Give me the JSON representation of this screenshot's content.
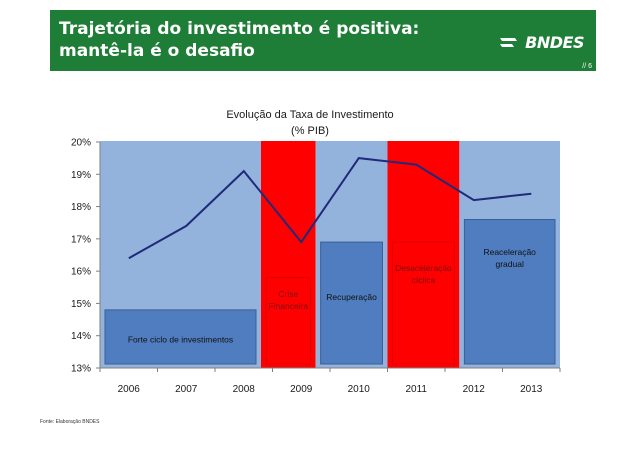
{
  "header": {
    "title": "Trajetória do investimento é positiva: mantê-la é o desafio",
    "logo_text": "BNDES",
    "page_number": "// 6"
  },
  "source_note": "Fonte: Elaboração BNDES",
  "colors": {
    "header_green": "#1e7d36",
    "panel_light_blue": "#93b3dd",
    "box_blue": "#4f7dbf",
    "crisis_red": "#ff0000",
    "line_navy": "#1f2a7a"
  },
  "chart_data": {
    "type": "line",
    "title": "Evolução da Taxa de Investimento",
    "subtitle": "(% PIB)",
    "x": [
      "2006",
      "2007",
      "2008",
      "2009",
      "2010",
      "2011",
      "2012",
      "2013"
    ],
    "y_ticks": [
      "13%",
      "14%",
      "15%",
      "16%",
      "17%",
      "18%",
      "19%",
      "20%"
    ],
    "ylim": [
      13,
      20
    ],
    "grid": false,
    "series": [
      {
        "values": [
          16.4,
          17.4,
          19.1,
          16.9,
          19.5,
          19.3,
          18.2,
          18.4
        ]
      }
    ],
    "annotations": [
      {
        "label": "Forte ciclo de investimentos",
        "panel_x": [
          2005.5,
          2008.3
        ],
        "box_top": 14.8,
        "color": "blue"
      },
      {
        "label": "Crise Financeira",
        "panel_x": [
          2008.3,
          2009.25
        ],
        "box_top": 15.8,
        "color": "red"
      },
      {
        "label": "Recuperação",
        "panel_x": [
          2009.25,
          2010.5
        ],
        "box_top": 16.9,
        "color": "blue"
      },
      {
        "label": "Desaceleração cíclica",
        "panel_x": [
          2010.5,
          2011.75
        ],
        "box_top": 16.9,
        "color": "red"
      },
      {
        "label": "Reaceleração gradual",
        "panel_x": [
          2011.75,
          2013.5
        ],
        "box_top": 17.6,
        "color": "blue"
      }
    ]
  }
}
